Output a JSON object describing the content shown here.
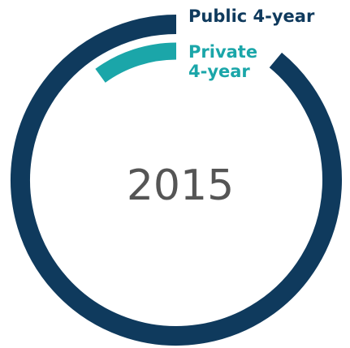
{
  "chart_data": {
    "type": "radial_bar",
    "title": "2015",
    "ylim": [
      0,
      100
    ],
    "series": [
      {
        "name": "Public 4-year",
        "color": "#0f3a5d",
        "values": [
          89
        ]
      },
      {
        "name": "Private 4-year",
        "color": "#1ba6a9",
        "values": [
          10
        ]
      }
    ]
  }
}
